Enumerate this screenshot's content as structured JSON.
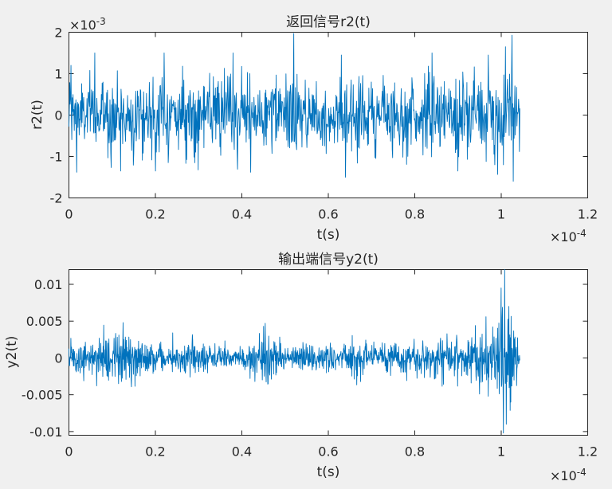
{
  "chart_data": [
    {
      "type": "line",
      "title": "返回信号r2(t)",
      "xlabel": "t(s)",
      "ylabel": "r2(t)",
      "x_exponent_label": "×10",
      "x_exponent": "-4",
      "y_exponent_label": "×10",
      "y_exponent": "-3",
      "xlim": [
        0,
        1.2
      ],
      "ylim": [
        -2,
        2
      ],
      "xticks": [
        "0",
        "0.2",
        "0.4",
        "0.6",
        "0.8",
        "1",
        "1.2"
      ],
      "yticks": [
        "-2",
        "-1",
        "0",
        "1",
        "2"
      ],
      "yticks_values": [
        -2,
        -1,
        0,
        1,
        2
      ],
      "color": "#0072bd",
      "signal": {
        "x_start": 0,
        "x_end": 1.043,
        "samples": 1100,
        "profile": [
          {
            "t": 0.0,
            "amp": 0.42
          },
          {
            "t": 0.1,
            "amp": 0.46
          },
          {
            "t": 0.2,
            "amp": 0.45
          },
          {
            "t": 0.3,
            "amp": 0.42
          },
          {
            "t": 0.4,
            "amp": 0.46
          },
          {
            "t": 0.5,
            "amp": 0.45
          },
          {
            "t": 0.6,
            "amp": 0.46
          },
          {
            "t": 0.7,
            "amp": 0.44
          },
          {
            "t": 0.8,
            "amp": 0.46
          },
          {
            "t": 0.9,
            "amp": 0.47
          },
          {
            "t": 0.97,
            "amp": 0.52
          },
          {
            "t": 1.0,
            "amp": 0.62
          },
          {
            "t": 1.043,
            "amp": 0.5
          }
        ],
        "peaks": [
          {
            "t": 0.005,
            "v": 1.2
          },
          {
            "t": 0.018,
            "v": -1.38
          },
          {
            "t": 0.06,
            "v": 1.5
          },
          {
            "t": 0.12,
            "v": -1.35
          },
          {
            "t": 0.22,
            "v": 1.5
          },
          {
            "t": 0.2,
            "v": -1.35
          },
          {
            "t": 0.38,
            "v": 1.5
          },
          {
            "t": 0.42,
            "v": -1.38
          },
          {
            "t": 0.52,
            "v": 1.97
          },
          {
            "t": 0.64,
            "v": -1.5
          },
          {
            "t": 0.63,
            "v": 1.45
          },
          {
            "t": 0.84,
            "v": 1.5
          },
          {
            "t": 0.9,
            "v": -1.35
          },
          {
            "t": 0.97,
            "v": 1.45
          },
          {
            "t": 1.01,
            "v": 1.65
          },
          {
            "t": 1.025,
            "v": 1.93
          },
          {
            "t": 0.985,
            "v": -1.2
          },
          {
            "t": 1.005,
            "v": -1.2
          }
        ]
      }
    },
    {
      "type": "line",
      "title": "输出端信号y2(t)",
      "xlabel": "t(s)",
      "ylabel": "y2(t)",
      "x_exponent_label": "×10",
      "x_exponent": "-4",
      "xlim": [
        0,
        1.2
      ],
      "ylim": [
        -0.0105,
        0.012
      ],
      "xticks": [
        "0",
        "0.2",
        "0.4",
        "0.6",
        "0.8",
        "1",
        "1.2"
      ],
      "yticks": [
        "-0.01",
        "-0.005",
        "0",
        "0.005",
        "0.01"
      ],
      "yticks_values": [
        -0.01,
        -0.005,
        0,
        0.005,
        0.01
      ],
      "color": "#0072bd",
      "signal": {
        "x_start": 0,
        "x_end": 1.043,
        "samples": 1400,
        "profile": [
          {
            "t": 0.0,
            "amp": 0.001
          },
          {
            "t": 0.05,
            "amp": 0.0014
          },
          {
            "t": 0.12,
            "amp": 0.0019
          },
          {
            "t": 0.18,
            "amp": 0.0012
          },
          {
            "t": 0.23,
            "amp": 0.0007
          },
          {
            "t": 0.28,
            "amp": 0.0013
          },
          {
            "t": 0.33,
            "amp": 0.001
          },
          {
            "t": 0.38,
            "amp": 0.0005
          },
          {
            "t": 0.46,
            "amp": 0.0018
          },
          {
            "t": 0.5,
            "amp": 0.0007
          },
          {
            "t": 0.56,
            "amp": 0.001
          },
          {
            "t": 0.61,
            "amp": 0.0006
          },
          {
            "t": 0.66,
            "amp": 0.0013
          },
          {
            "t": 0.72,
            "amp": 0.001
          },
          {
            "t": 0.78,
            "amp": 0.0009
          },
          {
            "t": 0.85,
            "amp": 0.0013
          },
          {
            "t": 0.92,
            "amp": 0.0016
          },
          {
            "t": 0.96,
            "amp": 0.002
          },
          {
            "t": 0.975,
            "amp": 0.0016
          },
          {
            "t": 0.99,
            "amp": 0.0022
          },
          {
            "t": 1.005,
            "amp": 0.004
          },
          {
            "t": 1.02,
            "amp": 0.0032
          },
          {
            "t": 1.035,
            "amp": 0.0014
          },
          {
            "t": 1.043,
            "amp": 0.0006
          }
        ],
        "peaks": [
          {
            "t": 0.125,
            "v": 0.0048
          },
          {
            "t": 0.115,
            "v": -0.0035
          },
          {
            "t": 0.24,
            "v": 0.0034
          },
          {
            "t": 0.45,
            "v": 0.0043
          },
          {
            "t": 0.43,
            "v": -0.0032
          },
          {
            "t": 0.94,
            "v": 0.0044
          },
          {
            "t": 0.95,
            "v": -0.0049
          },
          {
            "t": 0.965,
            "v": 0.0056
          },
          {
            "t": 0.97,
            "v": -0.0052
          },
          {
            "t": 1.0,
            "v": 0.0095
          },
          {
            "t": 1.008,
            "v": 0.0121
          },
          {
            "t": 1.005,
            "v": -0.0102
          },
          {
            "t": 1.012,
            "v": -0.009
          },
          {
            "t": 1.018,
            "v": 0.007
          },
          {
            "t": 1.022,
            "v": -0.006
          }
        ]
      }
    }
  ]
}
